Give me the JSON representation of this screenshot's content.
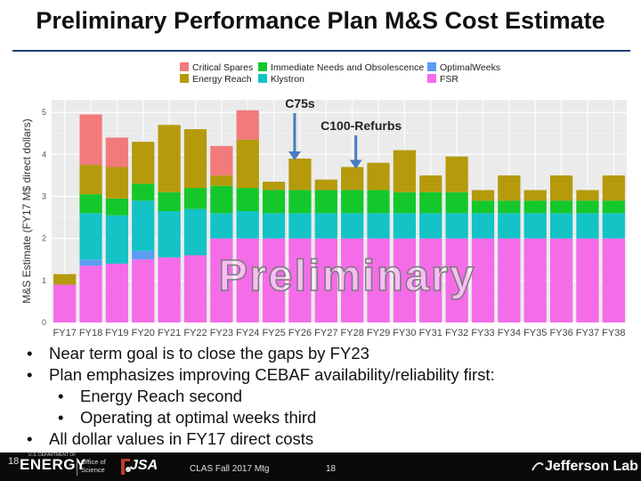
{
  "slide": {
    "title": "Preliminary Performance Plan M&S Cost Estimate",
    "watermark": "Preliminary",
    "bullets": [
      {
        "text": "Near term goal is to close the gaps by FY23",
        "level": 1
      },
      {
        "text": "Plan emphasizes improving CEBAF availability/reliability first:",
        "level": 1
      },
      {
        "text": "Energy Reach second",
        "level": 2
      },
      {
        "text": "Operating at optimal weeks third",
        "level": 2
      },
      {
        "text": "All dollar values in FY17 direct costs",
        "level": 1
      }
    ]
  },
  "footer": {
    "page_left": "18",
    "doe_logo": "ENERGY",
    "doe_logo_sub": "U.S. DEPARTMENT OF",
    "office_text_1": "Office of",
    "office_text_2": "Science",
    "jsa_logo": "JSA",
    "meeting": "CLAS Fall 2017 Mtg",
    "page_center": "18",
    "lab_logo": "Jefferson Lab"
  },
  "chart_data": {
    "type": "bar",
    "stacked": true,
    "title": "",
    "xlabel": "",
    "ylabel": "M&S Estimate (FY17 M$ direct dollars)",
    "ylim": [
      0,
      5.3
    ],
    "yticks": [
      0,
      1,
      2,
      3,
      4,
      5
    ],
    "categories": [
      "FY17",
      "FY18",
      "FY19",
      "FY20",
      "FY21",
      "FY22",
      "FY23",
      "FY24",
      "FY25",
      "FY26",
      "FY27",
      "FY28",
      "FY29",
      "FY30",
      "FY31",
      "FY32",
      "FY33",
      "FY34",
      "FY35",
      "FY36",
      "FY37",
      "FY38"
    ],
    "series": [
      {
        "name": "FSR",
        "color": "#f46ce8",
        "values": [
          0.9,
          1.35,
          1.4,
          1.5,
          1.55,
          1.6,
          2.0,
          2.0,
          2.0,
          2.0,
          2.0,
          2.0,
          2.0,
          2.0,
          2.0,
          2.0,
          2.0,
          2.0,
          2.0,
          2.0,
          2.0,
          2.0
        ]
      },
      {
        "name": "OptimalWeeks",
        "color": "#5c9df2",
        "values": [
          0,
          0.15,
          0,
          0.2,
          0,
          0,
          0,
          0,
          0,
          0,
          0,
          0,
          0,
          0,
          0,
          0,
          0,
          0,
          0,
          0,
          0,
          0
        ]
      },
      {
        "name": "Klystron",
        "color": "#13c3c6",
        "values": [
          0,
          1.1,
          1.15,
          1.2,
          1.1,
          1.1,
          0.6,
          0.65,
          0.6,
          0.6,
          0.6,
          0.6,
          0.6,
          0.6,
          0.6,
          0.6,
          0.6,
          0.6,
          0.6,
          0.6,
          0.6,
          0.6
        ]
      },
      {
        "name": "Immediate Needs and Obsolescence",
        "color": "#14c82c",
        "values": [
          0,
          0.45,
          0.4,
          0.4,
          0.45,
          0.5,
          0.65,
          0.55,
          0.55,
          0.55,
          0.55,
          0.55,
          0.55,
          0.5,
          0.5,
          0.5,
          0.3,
          0.3,
          0.3,
          0.3,
          0.3,
          0.3
        ]
      },
      {
        "name": "Energy Reach",
        "color": "#b59a0c",
        "values": [
          0.25,
          0.7,
          0.75,
          1.0,
          1.6,
          1.4,
          0.25,
          1.15,
          0.2,
          0.75,
          0.25,
          0.55,
          0.65,
          1.0,
          0.4,
          0.85,
          0.25,
          0.6,
          0.25,
          0.6,
          0.25,
          0.6
        ]
      },
      {
        "name": "Critical Spares",
        "color": "#f27a7b",
        "values": [
          0,
          1.2,
          0.7,
          0,
          0,
          0,
          0.7,
          0.7,
          0,
          0,
          0,
          0,
          0,
          0,
          0,
          0,
          0,
          0,
          0,
          0,
          0,
          0
        ]
      }
    ],
    "legend_order": [
      "Critical Spares",
      "Immediate Needs and Obsolescence",
      "OptimalWeeks",
      "Energy Reach",
      "Klystron",
      "FSR"
    ],
    "legend_position": "top",
    "grid": true,
    "annotations": [
      {
        "text": "C75s",
        "category": "FY26"
      },
      {
        "text": "C100-Refurbs",
        "category": "FY28"
      }
    ],
    "overlay_text": "Preliminary"
  }
}
